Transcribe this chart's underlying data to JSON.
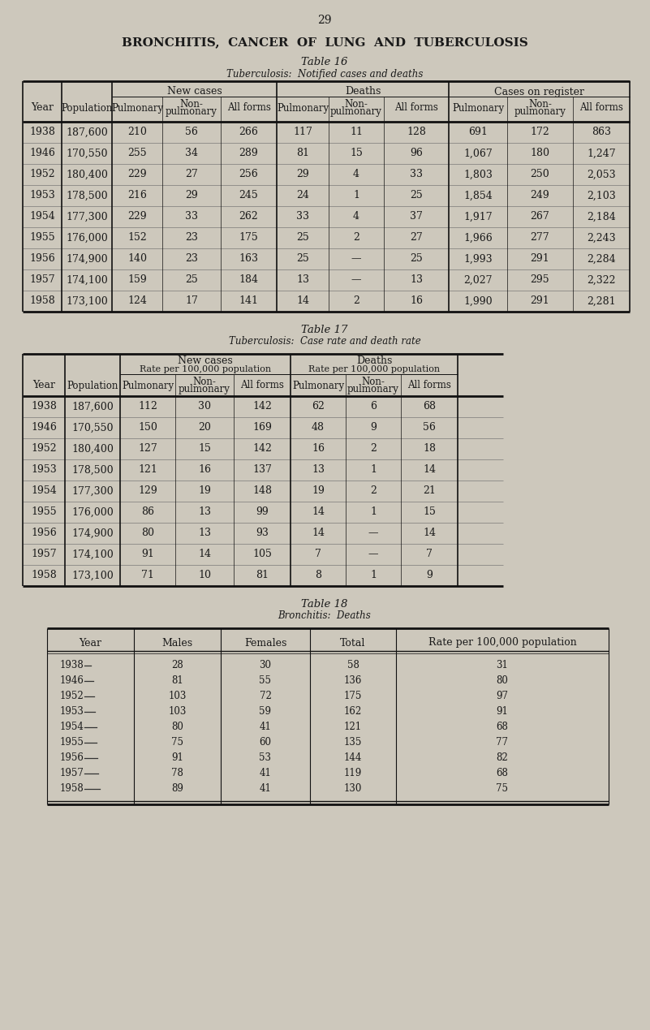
{
  "page_num": "29",
  "page_title": "BRONCHITIS,  CANCER  OF  LUNG  AND  TUBERCULOSIS",
  "bg_color": "#cdc8bc",
  "text_color": "#1a1a1a",
  "table16_title": "Table 16",
  "table16_subtitle": "Tuberculosis:  Notified cases and deaths",
  "table16_years": [
    "1938",
    "1946",
    "1952",
    "1953",
    "1954",
    "1955",
    "1956",
    "1957",
    "1958"
  ],
  "table16_populations": [
    "187,600",
    "170,550",
    "180,400",
    "178,500",
    "177,300",
    "176,000",
    "174,900",
    "174,100",
    "173,100"
  ],
  "table16_new_pulm": [
    "210",
    "255",
    "229",
    "216",
    "229",
    "152",
    "140",
    "159",
    "124"
  ],
  "table16_new_nonpulm": [
    "56",
    "34",
    "27",
    "29",
    "33",
    "23",
    "23",
    "25",
    "17"
  ],
  "table16_new_all": [
    "266",
    "289",
    "256",
    "245",
    "262",
    "175",
    "163",
    "184",
    "141"
  ],
  "table16_deaths_pulm": [
    "117",
    "81",
    "29",
    "24",
    "33",
    "25",
    "25",
    "13",
    "14"
  ],
  "table16_deaths_nonpulm": [
    "11",
    "15",
    "4",
    "1",
    "4",
    "2",
    "—",
    "—",
    "2"
  ],
  "table16_deaths_all": [
    "128",
    "96",
    "33",
    "25",
    "37",
    "27",
    "25",
    "13",
    "16"
  ],
  "table16_reg_pulm": [
    "691",
    "1,067",
    "1,803",
    "1,854",
    "1,917",
    "1,966",
    "1,993",
    "2,027",
    "1,990"
  ],
  "table16_reg_nonpulm": [
    "172",
    "180",
    "250",
    "249",
    "267",
    "277",
    "291",
    "295",
    "291"
  ],
  "table16_reg_all": [
    "863",
    "1,247",
    "2,053",
    "2,103",
    "2,184",
    "2,243",
    "2,284",
    "2,322",
    "2,281"
  ],
  "table17_title": "Table 17",
  "table17_subtitle": "Tuberculosis:  Case rate and death rate",
  "table17_years": [
    "1938",
    "1946",
    "1952",
    "1953",
    "1954",
    "1955",
    "1956",
    "1957",
    "1958"
  ],
  "table17_populations": [
    "187,600",
    "170,550",
    "180,400",
    "178,500",
    "177,300",
    "176,000",
    "174,900",
    "174,100",
    "173,100"
  ],
  "table17_new_pulm": [
    "112",
    "150",
    "127",
    "121",
    "129",
    "86",
    "80",
    "91",
    "71"
  ],
  "table17_new_nonpulm": [
    "30",
    "20",
    "15",
    "16",
    "19",
    "13",
    "13",
    "14",
    "10"
  ],
  "table17_new_all": [
    "142",
    "169",
    "142",
    "137",
    "148",
    "99",
    "93",
    "105",
    "81"
  ],
  "table17_deaths_pulm": [
    "62",
    "48",
    "16",
    "13",
    "19",
    "14",
    "14",
    "7",
    "8"
  ],
  "table17_deaths_nonpulm": [
    "6",
    "9",
    "2",
    "1",
    "2",
    "1",
    "—",
    "—",
    "1"
  ],
  "table17_deaths_all": [
    "68",
    "56",
    "18",
    "14",
    "21",
    "15",
    "14",
    "7",
    "9"
  ],
  "table18_title": "Table 18",
  "table18_subtitle": "Bronchitis:  Deaths",
  "table18_years": [
    "1938",
    "1946",
    "1952",
    "1953",
    "1954",
    "1955",
    "1956",
    "1957",
    "1958"
  ],
  "table18_males": [
    "28",
    "81",
    "103",
    "103",
    "80",
    "75",
    "91",
    "78",
    "89"
  ],
  "table18_females": [
    "30",
    "55",
    "72",
    "59",
    "41",
    "60",
    "53",
    "41",
    "41"
  ],
  "table18_totals": [
    "58",
    "136",
    "175",
    "162",
    "121",
    "135",
    "144",
    "119",
    "130"
  ],
  "table18_rates": [
    "31",
    "80",
    "97",
    "91",
    "68",
    "77",
    "82",
    "68",
    "75"
  ]
}
